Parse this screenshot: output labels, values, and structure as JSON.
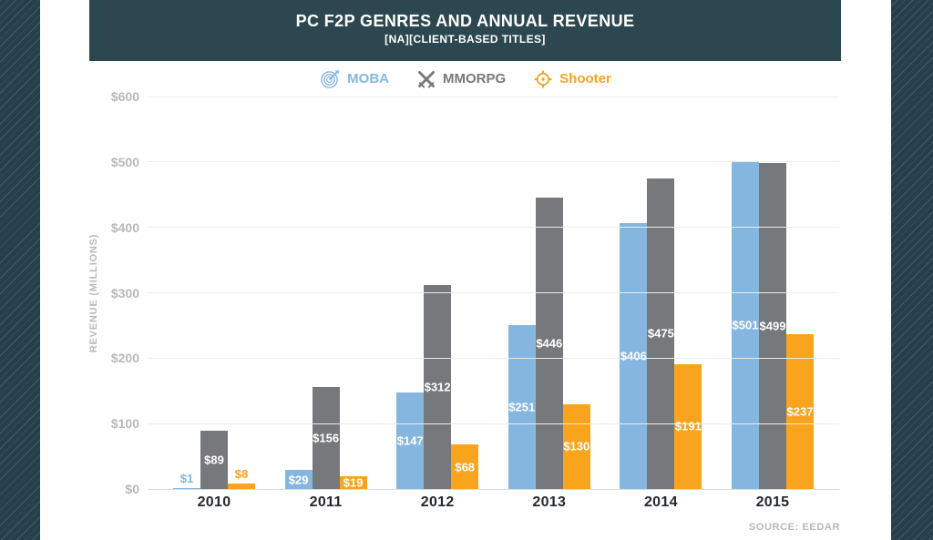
{
  "header": {
    "title": "PC F2P GENRES AND ANNUAL REVENUE",
    "subtitle": "[NA][CLIENT-BASED TITLES]"
  },
  "legend": [
    {
      "label": "MOBA",
      "icon": "target-dart-icon"
    },
    {
      "label": "MMORPG",
      "icon": "crossed-swords-icon"
    },
    {
      "label": "Shooter",
      "icon": "crosshair-icon"
    }
  ],
  "chart_data": {
    "type": "bar",
    "title": "PC F2P GENRES AND ANNUAL REVENUE",
    "subtitle": "[NA][CLIENT-BASED TITLES]",
    "categories": [
      "2010",
      "2011",
      "2012",
      "2013",
      "2014",
      "2015"
    ],
    "series": [
      {
        "name": "MOBA",
        "color": "#85b6e0",
        "values": [
          1,
          29,
          147,
          251,
          406,
          501
        ]
      },
      {
        "name": "MMORPG",
        "color": "#77787b",
        "values": [
          89,
          156,
          312,
          446,
          475,
          499
        ]
      },
      {
        "name": "Shooter",
        "color": "#f9a41c",
        "values": [
          8,
          19,
          68,
          130,
          191,
          237
        ]
      }
    ],
    "xlabel": "",
    "ylabel": "REVENUE (MILLIONS)",
    "ylim": [
      0,
      600
    ],
    "yticks": [
      "$0",
      "$100",
      "$200",
      "$300",
      "$400",
      "$500",
      "$600"
    ],
    "grid": true,
    "legend_position": "top",
    "value_prefix": "$",
    "value_labels": true
  },
  "source": "SOURCE: EEDAR",
  "colors": {
    "background": "#263f4a",
    "header_bg": "#2d4751",
    "panel_bg": "#ffffff",
    "axis_text": "#b6b8bb",
    "gridline": "#e9ebed",
    "year_label": "#23282e"
  }
}
